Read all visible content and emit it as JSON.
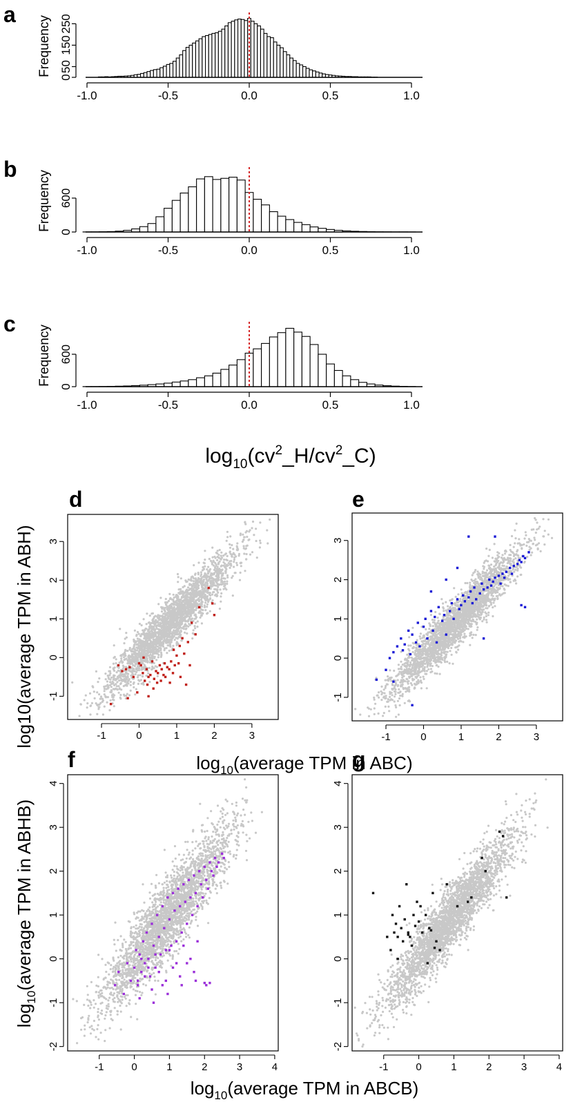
{
  "figure": {
    "hist_xlabel": {
      "base": "log",
      "sub": "10",
      "text": "(cv",
      "sup1": "2",
      "mid": "_H/cv",
      "sup2": "2",
      "end": "_C)"
    },
    "scatter_ylabel_top": "log10(average TPM in ABH)",
    "scatter_xlabel_top": {
      "base": "log",
      "sub": "10",
      "rest": "(average TPM in ABC)"
    },
    "scatter_ylabel_bottom": {
      "base": "log",
      "sub": "10",
      "rest": "(average TPM in ABHB)"
    },
    "scatter_xlabel_bottom": {
      "base": "log",
      "sub": "10",
      "rest": "(average TPM in ABCB)"
    }
  },
  "colors": {
    "background_points": "#c8c8c8",
    "reference_line": "#d62728",
    "d": "#c0201a",
    "e": "#1a1ad6",
    "f": "#9b30d9",
    "g": "#111111"
  },
  "chart_data": [
    {
      "panel": "a",
      "type": "bar",
      "subtype": "histogram",
      "ylabel": "Frequency",
      "yticks": [
        0,
        50,
        150,
        250
      ],
      "ytick_labels": [
        "0",
        "50",
        "150",
        "250"
      ],
      "xticks": [
        -1.0,
        -0.5,
        0.0,
        0.5,
        1.0
      ],
      "xtick_labels": [
        "-1.0",
        "-0.5",
        "0.0",
        "0.5",
        "1.0"
      ],
      "xlim": [
        -1.05,
        1.05
      ],
      "ylim": [
        0,
        290
      ],
      "bin_width": 0.02,
      "reference_line_x": 0.0,
      "bins": [
        -0.92,
        -0.9,
        -0.88,
        -0.86,
        -0.84,
        -0.82,
        -0.8,
        -0.78,
        -0.76,
        -0.74,
        -0.72,
        -0.7,
        -0.68,
        -0.66,
        -0.64,
        -0.62,
        -0.6,
        -0.58,
        -0.56,
        -0.54,
        -0.52,
        -0.5,
        -0.48,
        -0.46,
        -0.44,
        -0.42,
        -0.4,
        -0.38,
        -0.36,
        -0.34,
        -0.32,
        -0.3,
        -0.28,
        -0.26,
        -0.24,
        -0.22,
        -0.2,
        -0.18,
        -0.16,
        -0.14,
        -0.12,
        -0.1,
        -0.08,
        -0.06,
        -0.04,
        -0.02,
        0.0,
        0.02,
        0.04,
        0.06,
        0.08,
        0.1,
        0.12,
        0.14,
        0.16,
        0.18,
        0.2,
        0.22,
        0.24,
        0.26,
        0.28,
        0.3,
        0.32,
        0.34,
        0.36,
        0.38,
        0.4,
        0.42,
        0.44,
        0.46,
        0.48,
        0.5,
        0.52,
        0.54,
        0.56,
        0.58,
        0.6,
        0.62,
        0.64,
        0.66,
        0.68,
        0.7,
        0.72,
        0.74,
        0.76,
        0.78
      ],
      "values": [
        2,
        2,
        3,
        2,
        3,
        4,
        5,
        5,
        6,
        7,
        9,
        12,
        14,
        18,
        22,
        27,
        32,
        36,
        38,
        45,
        52,
        60,
        65,
        75,
        90,
        105,
        125,
        140,
        150,
        160,
        170,
        180,
        190,
        195,
        200,
        205,
        208,
        215,
        225,
        240,
        255,
        262,
        268,
        272,
        270,
        265,
        275,
        262,
        250,
        240,
        225,
        205,
        190,
        185,
        165,
        150,
        138,
        120,
        105,
        90,
        78,
        65,
        58,
        50,
        42,
        35,
        30,
        25,
        20,
        16,
        13,
        11,
        9,
        7,
        6,
        5,
        4,
        4,
        3,
        3,
        2,
        2,
        2,
        2,
        1,
        1
      ]
    },
    {
      "panel": "b",
      "type": "bar",
      "subtype": "histogram",
      "ylabel": "Frequency",
      "yticks": [
        0,
        600
      ],
      "ytick_labels": [
        "0",
        "600"
      ],
      "xticks": [
        -1.0,
        -0.5,
        0.0,
        0.5,
        1.0
      ],
      "xtick_labels": [
        "-1.0",
        "-0.5",
        "0.0",
        "0.5",
        "1.0"
      ],
      "xlim": [
        -1.05,
        1.05
      ],
      "ylim": [
        0,
        1100
      ],
      "bin_width": 0.05,
      "reference_line_x": 0.0,
      "bins": [
        -1.0,
        -0.95,
        -0.9,
        -0.85,
        -0.8,
        -0.75,
        -0.7,
        -0.65,
        -0.6,
        -0.55,
        -0.5,
        -0.45,
        -0.4,
        -0.35,
        -0.3,
        -0.25,
        -0.2,
        -0.15,
        -0.1,
        -0.05,
        0.0,
        0.05,
        0.1,
        0.15,
        0.2,
        0.25,
        0.3,
        0.35,
        0.4,
        0.45,
        0.5,
        0.55,
        0.6,
        0.65,
        0.7,
        0.75,
        0.8,
        0.85,
        0.9,
        0.95,
        1.0
      ],
      "values": [
        2,
        3,
        5,
        8,
        15,
        30,
        55,
        95,
        150,
        270,
        420,
        560,
        690,
        800,
        940,
        980,
        930,
        950,
        970,
        920,
        700,
        580,
        480,
        360,
        280,
        220,
        170,
        130,
        90,
        65,
        45,
        30,
        20,
        13,
        9,
        6,
        4,
        3,
        2,
        2,
        1
      ]
    },
    {
      "panel": "c",
      "type": "bar",
      "subtype": "histogram",
      "ylabel": "Frequency",
      "yticks": [
        0,
        600
      ],
      "ytick_labels": [
        "0",
        "600"
      ],
      "xticks": [
        -1.0,
        -0.5,
        0.0,
        0.5,
        1.0
      ],
      "xtick_labels": [
        "-1.0",
        "-0.5",
        "0.0",
        "0.5",
        "1.0"
      ],
      "xlim": [
        -1.05,
        1.05
      ],
      "ylim": [
        0,
        1150
      ],
      "bin_width": 0.05,
      "reference_line_x": 0.0,
      "bins": [
        -1.0,
        -0.95,
        -0.9,
        -0.85,
        -0.8,
        -0.75,
        -0.7,
        -0.65,
        -0.6,
        -0.55,
        -0.5,
        -0.45,
        -0.4,
        -0.35,
        -0.3,
        -0.25,
        -0.2,
        -0.15,
        -0.1,
        -0.05,
        0.0,
        0.05,
        0.1,
        0.15,
        0.2,
        0.25,
        0.3,
        0.35,
        0.4,
        0.45,
        0.5,
        0.55,
        0.6,
        0.65,
        0.7,
        0.75,
        0.8,
        0.85,
        0.9,
        0.95,
        1.0
      ],
      "values": [
        2,
        3,
        4,
        6,
        9,
        13,
        20,
        28,
        38,
        50,
        65,
        85,
        105,
        130,
        165,
        200,
        250,
        320,
        400,
        500,
        620,
        700,
        800,
        920,
        1000,
        1080,
        1010,
        930,
        780,
        600,
        420,
        300,
        200,
        130,
        80,
        50,
        30,
        18,
        10,
        6,
        3
      ]
    },
    {
      "panel": "d",
      "type": "scatter",
      "xticks": [
        -1,
        0,
        1,
        2,
        3
      ],
      "xtick_labels": [
        "-1",
        "0",
        "1",
        "2",
        "3"
      ],
      "yticks": [
        -1,
        0,
        1,
        2,
        3
      ],
      "ytick_labels": [
        "-1",
        "0",
        "1",
        "2",
        "3"
      ],
      "xlim": [
        -1.9,
        3.7
      ],
      "ylim": [
        -1.6,
        3.7
      ],
      "background": {
        "seed": 11,
        "count": 2600,
        "x_mean": 0.85,
        "x_sd": 0.85,
        "noise_sd": 0.32,
        "slope": 1.0,
        "intercept": 0.05
      },
      "highlighted": {
        "x": [
          -0.55,
          -0.45,
          -0.35,
          -0.25,
          -0.15,
          -0.05,
          0.0,
          0.05,
          0.1,
          0.12,
          0.15,
          0.2,
          0.22,
          0.25,
          0.3,
          0.35,
          0.38,
          0.4,
          0.45,
          0.48,
          0.5,
          0.55,
          0.58,
          0.6,
          0.65,
          0.68,
          0.7,
          0.75,
          0.8,
          0.82,
          0.85,
          0.9,
          0.92,
          0.95,
          1.0,
          1.05,
          1.08,
          1.1,
          1.15,
          1.2,
          1.25,
          1.3,
          1.35,
          1.4,
          1.5,
          1.6,
          1.85,
          1.95,
          2.0,
          -0.75,
          -0.3,
          0.25
        ],
        "y": [
          -0.2,
          -0.35,
          -0.3,
          -0.25,
          -0.5,
          -0.9,
          -0.15,
          -0.2,
          -0.4,
          0.0,
          -0.6,
          -0.3,
          -0.7,
          -0.5,
          -0.45,
          -0.1,
          -0.8,
          -0.55,
          -0.35,
          -0.65,
          -0.4,
          -0.2,
          -0.6,
          -0.3,
          -0.45,
          -0.15,
          -0.5,
          -0.25,
          -0.3,
          -0.65,
          -0.1,
          -0.4,
          0.2,
          -0.2,
          0.05,
          -0.15,
          0.3,
          -0.5,
          0.5,
          0.1,
          -0.7,
          0.4,
          -0.2,
          0.9,
          0.6,
          1.3,
          1.8,
          1.4,
          1.1,
          -1.2,
          -1.05,
          -1.0
        ]
      }
    },
    {
      "panel": "e",
      "type": "scatter",
      "xticks": [
        -1,
        0,
        1,
        2,
        3
      ],
      "xtick_labels": [
        "-1",
        "0",
        "1",
        "2",
        "3"
      ],
      "yticks": [
        -1,
        0,
        1,
        2,
        3
      ],
      "ytick_labels": [
        "-1",
        "0",
        "1",
        "2",
        "3"
      ],
      "xlim": [
        -1.9,
        3.7
      ],
      "ylim": [
        -1.6,
        3.7
      ],
      "background": {
        "seed": 23,
        "count": 2600,
        "x_mean": 0.85,
        "x_sd": 0.85,
        "noise_sd": 0.3,
        "slope": 1.0,
        "intercept": 0.05
      },
      "highlighted": {
        "x": [
          -1.25,
          -1.0,
          -0.9,
          -0.8,
          -0.7,
          -0.6,
          -0.55,
          -0.5,
          -0.4,
          -0.35,
          -0.3,
          -0.2,
          -0.15,
          -0.1,
          0.0,
          0.05,
          0.1,
          0.2,
          0.25,
          0.3,
          0.35,
          0.4,
          0.5,
          0.55,
          0.6,
          0.7,
          0.75,
          0.8,
          0.9,
          0.95,
          1.0,
          1.05,
          1.1,
          1.2,
          1.25,
          1.3,
          1.35,
          1.4,
          1.5,
          1.55,
          1.6,
          1.7,
          1.75,
          1.8,
          1.85,
          1.9,
          2.0,
          2.05,
          2.1,
          2.15,
          2.2,
          2.3,
          2.35,
          2.4,
          2.5,
          2.55,
          2.6,
          2.65,
          2.7,
          2.8,
          -0.3,
          1.2,
          1.9,
          2.6,
          2.7,
          0.6,
          0.2,
          1.6,
          -0.8,
          0.9
        ],
        "y": [
          -0.55,
          -0.3,
          0.0,
          0.15,
          0.3,
          0.5,
          0.2,
          0.35,
          0.7,
          0.1,
          0.6,
          0.4,
          0.9,
          0.3,
          0.8,
          1.0,
          0.5,
          1.2,
          0.7,
          1.05,
          0.4,
          1.3,
          0.95,
          1.1,
          0.6,
          1.2,
          1.4,
          1.0,
          1.5,
          1.25,
          1.35,
          1.6,
          1.45,
          1.55,
          1.7,
          1.4,
          1.8,
          1.5,
          1.65,
          1.9,
          1.75,
          1.8,
          2.0,
          1.85,
          1.95,
          2.05,
          2.1,
          1.9,
          2.15,
          2.05,
          2.2,
          2.3,
          2.15,
          2.35,
          2.4,
          2.5,
          2.45,
          2.6,
          2.55,
          2.7,
          -1.2,
          3.1,
          3.1,
          1.35,
          1.3,
          2.0,
          1.7,
          0.5,
          -0.6,
          2.3
        ]
      }
    },
    {
      "panel": "f",
      "type": "scatter",
      "xticks": [
        -1,
        0,
        1,
        2,
        3,
        4
      ],
      "xtick_labels": [
        "-1",
        "0",
        "1",
        "2",
        "3",
        "4"
      ],
      "yticks": [
        -2,
        -1,
        0,
        1,
        2,
        3,
        4
      ],
      "ytick_labels": [
        "-2",
        "-1",
        "0",
        "1",
        "2",
        "3",
        "4"
      ],
      "xlim": [
        -1.9,
        4.1
      ],
      "ylim": [
        -2.1,
        4.2
      ],
      "background": {
        "seed": 37,
        "count": 2800,
        "x_mean": 0.9,
        "x_sd": 0.9,
        "noise_sd": 0.42,
        "slope": 1.0,
        "intercept": 0.0
      },
      "highlighted": {
        "x": [
          -0.55,
          -0.45,
          -0.3,
          -0.2,
          -0.1,
          0.0,
          0.05,
          0.1,
          0.15,
          0.2,
          0.25,
          0.3,
          0.35,
          0.4,
          0.45,
          0.5,
          0.55,
          0.6,
          0.65,
          0.7,
          0.75,
          0.8,
          0.85,
          0.9,
          0.95,
          1.0,
          1.05,
          1.1,
          1.15,
          1.2,
          1.25,
          1.3,
          1.35,
          1.4,
          1.45,
          1.5,
          1.55,
          1.6,
          1.65,
          1.7,
          1.75,
          1.8,
          1.85,
          1.9,
          1.95,
          2.0,
          2.05,
          2.1,
          2.15,
          2.2,
          2.25,
          2.3,
          2.35,
          2.4,
          2.5,
          2.55,
          0.1,
          0.3,
          0.5,
          0.7,
          0.9,
          1.1,
          1.3,
          1.5,
          1.7,
          0.2,
          0.4,
          0.6,
          0.8,
          1.0,
          1.2,
          1.4,
          1.6,
          1.8,
          2.0,
          0.15,
          0.55,
          0.95,
          1.35,
          1.75,
          2.05,
          2.15
        ],
        "y": [
          -0.6,
          -0.3,
          -0.8,
          -0.1,
          -0.5,
          -0.2,
          0.2,
          -0.6,
          0.1,
          -0.3,
          0.4,
          -0.1,
          0.6,
          0.0,
          -0.4,
          0.8,
          0.3,
          -0.2,
          1.0,
          0.5,
          0.1,
          1.2,
          0.7,
          0.2,
          1.4,
          0.9,
          0.3,
          1.5,
          1.1,
          0.4,
          1.6,
          1.2,
          0.6,
          1.7,
          1.3,
          0.8,
          1.8,
          1.4,
          1.0,
          1.9,
          1.5,
          1.2,
          2.0,
          1.7,
          1.4,
          2.1,
          1.8,
          1.6,
          2.2,
          2.0,
          1.9,
          2.3,
          2.1,
          2.2,
          2.4,
          2.3,
          -0.5,
          -0.4,
          -0.7,
          -0.3,
          -0.5,
          -0.2,
          -0.4,
          -0.1,
          -0.3,
          0.0,
          -0.2,
          0.1,
          -0.6,
          0.2,
          -0.1,
          0.3,
          0.0,
          0.4,
          -0.55,
          -0.9,
          -1.0,
          -0.8,
          -0.6,
          -0.5,
          -0.6,
          -0.55
        ]
      }
    },
    {
      "panel": "g",
      "type": "scatter",
      "xticks": [
        -1,
        0,
        1,
        2,
        3,
        4
      ],
      "xtick_labels": [
        "-1",
        "0",
        "1",
        "2",
        "3",
        "4"
      ],
      "yticks": [
        -2,
        -1,
        0,
        1,
        2,
        3,
        4
      ],
      "ytick_labels": [
        "-2",
        "-1",
        "0",
        "1",
        "2",
        "3",
        "4"
      ],
      "xlim": [
        -1.9,
        4.1
      ],
      "ylim": [
        -2.1,
        4.2
      ],
      "background": {
        "seed": 51,
        "count": 2800,
        "x_mean": 0.9,
        "x_sd": 0.9,
        "noise_sd": 0.36,
        "slope": 1.0,
        "intercept": 0.0
      },
      "highlighted": {
        "x": [
          -1.3,
          -0.9,
          -0.8,
          -0.75,
          -0.7,
          -0.65,
          -0.6,
          -0.55,
          -0.5,
          -0.45,
          -0.4,
          -0.35,
          -0.3,
          -0.25,
          -0.2,
          -0.15,
          -0.1,
          -0.05,
          0.0,
          0.1,
          0.2,
          0.3,
          0.4,
          0.5,
          0.6,
          0.8,
          1.1,
          1.4,
          1.5,
          1.8,
          1.9,
          2.3,
          2.4,
          2.5,
          -0.6,
          -0.3,
          0.05,
          0.35,
          0.25,
          0.45
        ],
        "y": [
          1.5,
          0.5,
          0.2,
          1.0,
          0.6,
          0.8,
          0.5,
          1.2,
          0.7,
          0.4,
          0.9,
          1.7,
          0.6,
          0.5,
          0.3,
          1.0,
          0.75,
          1.3,
          0.85,
          0.6,
          1.0,
          0.7,
          1.5,
          0.4,
          0.2,
          1.7,
          1.2,
          1.3,
          1.4,
          2.3,
          2.0,
          2.9,
          2.8,
          1.4,
          0.0,
          0.55,
          1.2,
          0.65,
          -0.1,
          0.25
        ]
      }
    }
  ]
}
